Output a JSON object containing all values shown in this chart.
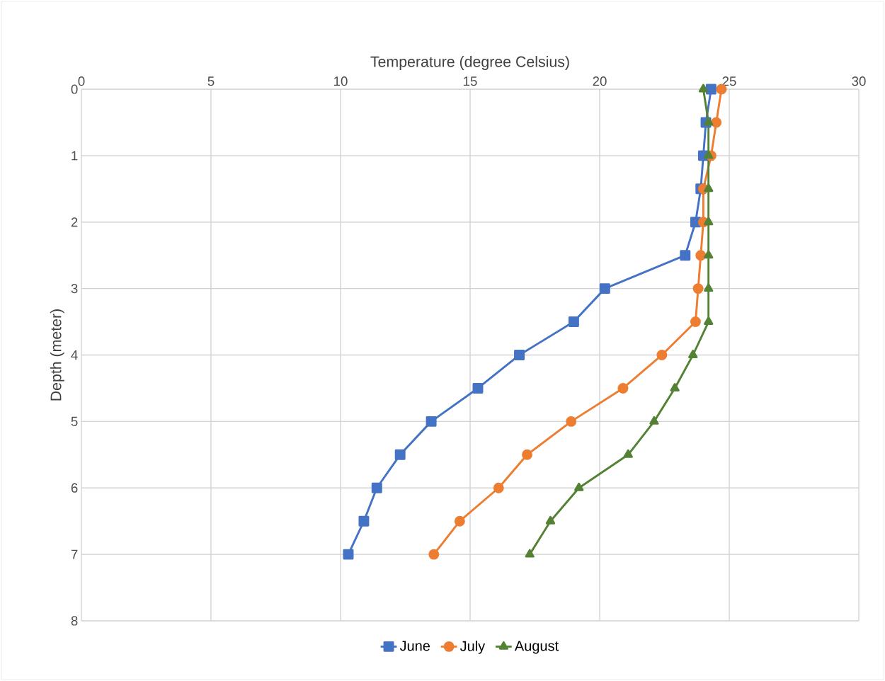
{
  "chart_data": {
    "type": "line",
    "xlabel": "Temperature (degree Celsius)",
    "ylabel": "Depth (meter)",
    "xlim": [
      0,
      30
    ],
    "xticks": [
      0,
      5,
      10,
      15,
      20,
      25,
      30
    ],
    "ylim": [
      8,
      0
    ],
    "yticks": [
      0,
      1,
      2,
      3,
      4,
      5,
      6,
      7,
      8
    ],
    "grid": true,
    "legend": "bottom",
    "line_style": "solid",
    "series": [
      {
        "name": "June",
        "color": "#4472c4",
        "marker": "square",
        "x": [
          24.3,
          24.1,
          24.0,
          23.9,
          23.7,
          23.3,
          20.2,
          19.0,
          16.9,
          15.3,
          13.5,
          12.3,
          11.4,
          10.9,
          10.3
        ],
        "values": [
          0,
          0.5,
          1,
          1.5,
          2,
          2.5,
          3,
          3.5,
          4,
          4.5,
          5,
          5.5,
          6,
          6.5,
          7
        ]
      },
      {
        "name": "July",
        "color": "#ed7d31",
        "marker": "circle",
        "x": [
          24.7,
          24.5,
          24.3,
          24.0,
          24.0,
          23.9,
          23.8,
          23.7,
          22.4,
          20.9,
          18.9,
          17.2,
          16.1,
          14.6,
          13.6
        ],
        "values": [
          0,
          0.5,
          1,
          1.5,
          2,
          2.5,
          3,
          3.5,
          4,
          4.5,
          5,
          5.5,
          6,
          6.5,
          7
        ]
      },
      {
        "name": "August",
        "color": "#548235",
        "marker": "triangle",
        "x": [
          24.0,
          24.2,
          24.2,
          24.2,
          24.2,
          24.2,
          24.2,
          24.2,
          23.6,
          22.9,
          22.1,
          21.1,
          19.2,
          18.1,
          17.3
        ],
        "values": [
          0,
          0.5,
          1,
          1.5,
          2,
          2.5,
          3,
          3.5,
          4,
          4.5,
          5,
          5.5,
          6,
          6.5,
          7
        ]
      }
    ]
  }
}
